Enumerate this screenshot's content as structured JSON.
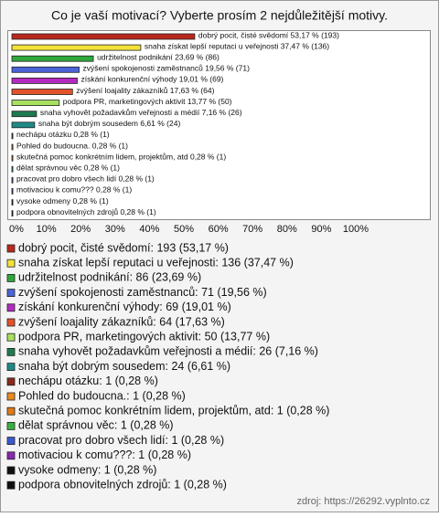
{
  "chart_data": {
    "type": "bar",
    "orientation": "horizontal",
    "title": "Co je vaší motivací? Vyberte prosím 2 nejdůležitější motivy.",
    "categories": [
      "dobrý pocit, čisté svědomí",
      "snaha získat lepší reputaci u veřejnosti",
      "udržitelnost podnikání",
      "zvýšení spokojenosti zaměstnanců",
      "získání konkurenční výhody",
      "zvýšení loajality zákazníků",
      "podpora PR, marketingových aktivit",
      "snaha vyhovět požadavkům veřejnosti a médií",
      "snaha být dobrým sousedem",
      "nechápu otázku",
      "Pohled do budoucna.",
      "skutečná pomoc konkrétním lidem, projektům, atd",
      "dělat správnou věc",
      "pracovat pro dobro všech lidí",
      "motivaciou k comu???",
      "vysoke odmeny",
      "podpora obnovitelných zdrojů"
    ],
    "values": [
      53.17,
      37.47,
      23.69,
      19.56,
      19.01,
      17.63,
      13.77,
      7.16,
      6.61,
      0.28,
      0.28,
      0.28,
      0.28,
      0.28,
      0.28,
      0.28,
      0.28
    ],
    "value_labels": [
      "dobrý pocit, čisté svědomí 53,17 % (193)",
      "snaha získat lepší reputaci u veřejnosti 37,47 % (136)",
      "udržitelnost podnikání 23,69 % (86)",
      "zvýšení spokojenosti zaměstnanců 19,56 % (71)",
      "získání konkurenční výhody 19,01 % (69)",
      "zvýšení loajality zákazníků 17,63 % (64)",
      "podpora PR, marketingových aktivit 13,77 % (50)",
      "snaha vyhovět požadavkům veřejnosti a médií 7,16 % (26)",
      "snaha být dobrým sousedem 6,61 % (24)",
      "nechápu otázku 0,28 % (1)",
      "Pohled do budoucna. 0,28 % (1)",
      "skutečná pomoc konkrétním lidem, projektům, atd 0,28 % (1)",
      "dělat správnou věc 0,28 % (1)",
      "pracovat pro dobro všech lidí 0,28 % (1)",
      "motivaciou k comu??? 0,28 % (1)",
      "vysoke odmeny 0,28 % (1)",
      "podpora obnovitelných zdrojů 0,28 % (1)"
    ],
    "legend_labels": [
      "dobrý pocit, čisté svědomí: 193 (53,17 %)",
      "snaha získat lepší reputaci u veřejnosti: 136 (37,47 %)",
      "udržitelnost podnikání: 86 (23,69 %)",
      "zvýšení spokojenosti zaměstnanců: 71 (19,56 %)",
      "získání konkurenční výhody: 69 (19,01 %)",
      "zvýšení loajality zákazníků: 64 (17,63 %)",
      "podpora PR, marketingových aktivit: 50 (13,77 %)",
      "snaha vyhovět požadavkům veřejnosti a médií: 26 (7,16 %)",
      "snaha být dobrým sousedem: 24 (6,61 %)",
      "nechápu otázku: 1 (0,28 %)",
      "Pohled do budoucna.: 1 (0,28 %)",
      "skutečná pomoc konkrétním lidem, projektům, atd: 1 (0,28 %)",
      "dělat správnou věc: 1 (0,28 %)",
      "pracovat pro dobro všech lidí: 1 (0,28 %)",
      "motivaciou k comu???: 1 (0,28 %)",
      "vysoke odmeny: 1 (0,28 %)",
      "podpora obnovitelných zdrojů: 1 (0,28 %)"
    ],
    "colors": [
      "#b8281e",
      "#f2e23a",
      "#2fa83a",
      "#4a64d8",
      "#b42ac0",
      "#e2522a",
      "#a8e060",
      "#1f7a50",
      "#1e8a88",
      "#8a2a1a",
      "#e88a20",
      "#e07a18",
      "#38b040",
      "#3a5ad0",
      "#8a2ab0",
      "#101010",
      "#101010"
    ],
    "xlim": [
      0,
      100
    ],
    "xticks": [
      {
        "value": 0,
        "label": "0%"
      },
      {
        "value": 10,
        "label": "10%"
      },
      {
        "value": 20,
        "label": "20%"
      },
      {
        "value": 30,
        "label": "30%"
      },
      {
        "value": 40,
        "label": "40%"
      },
      {
        "value": 50,
        "label": "50%"
      },
      {
        "value": 60,
        "label": "60%"
      },
      {
        "value": 70,
        "label": "70%"
      },
      {
        "value": 80,
        "label": "80%"
      },
      {
        "value": 90,
        "label": "90%"
      },
      {
        "value": 100,
        "label": "100%"
      }
    ],
    "source": "zdroj: https://26292.vyplnto.cz"
  }
}
